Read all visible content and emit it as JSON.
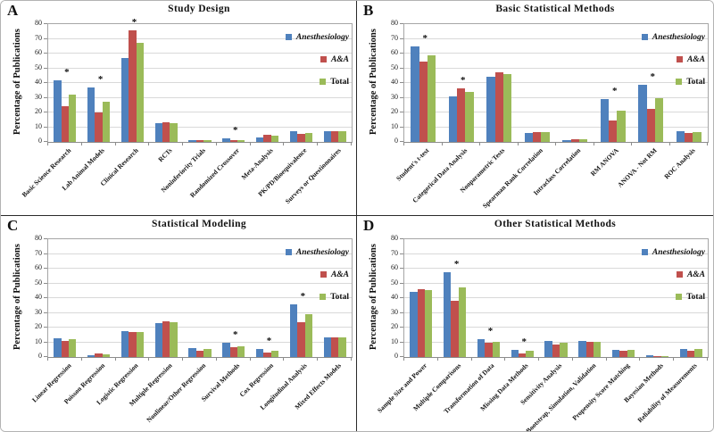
{
  "figure": {
    "border_color": "#b3b3b3",
    "panel_divider_color": "#2a2a2a",
    "background": "#ffffff"
  },
  "colors": {
    "anesthesiology": "#4F81BD",
    "aa": "#C0504D",
    "total": "#9BBB59",
    "gridline": "#d9d9d9",
    "axis": "#8c8c8c"
  },
  "sig_marker": "*",
  "legend": {
    "items": [
      {
        "label": "Anesthesiology",
        "italic": true
      },
      {
        "label": "A&A",
        "italic": true
      },
      {
        "label": "Total",
        "italic": false
      }
    ]
  },
  "chart_data": [
    {
      "panel_label": "A",
      "type": "bar",
      "title": "Study Design",
      "xlabel": "",
      "ylabel": "Percentage of Publications",
      "ylim": [
        0,
        80
      ],
      "yticks": [
        0,
        10,
        20,
        30,
        40,
        50,
        60,
        70,
        80
      ],
      "grid": true,
      "legend_position": "top-right-inside",
      "categories": [
        "Basic Science Research",
        "Lab Animal Models",
        "Clinical Research",
        "RCTs",
        "Noninferiority Trials",
        "Randomized Crossover",
        "Meta-Analysis",
        "PK/PD/Bioequivalence",
        "Surveys or Questionnaires"
      ],
      "series": [
        {
          "name": "Anesthesiology",
          "values": [
            42,
            37,
            57,
            12.5,
            1,
            2.5,
            3,
            7,
            7
          ]
        },
        {
          "name": "A&A",
          "values": [
            24.5,
            20,
            75.5,
            13.5,
            1.5,
            1,
            5,
            5.5,
            7
          ]
        },
        {
          "name": "Total",
          "values": [
            32,
            27.5,
            67,
            12.5,
            1,
            1.5,
            4,
            6,
            7
          ]
        }
      ],
      "significant": [
        true,
        true,
        true,
        false,
        false,
        true,
        false,
        false,
        false
      ]
    },
    {
      "panel_label": "B",
      "type": "bar",
      "title": "Basic Statistical Methods",
      "xlabel": "",
      "ylabel": "Percentage of Publications",
      "ylim": [
        0,
        80
      ],
      "yticks": [
        0,
        10,
        20,
        30,
        40,
        50,
        60,
        70,
        80
      ],
      "grid": true,
      "legend_position": "top-right-inside",
      "categories": [
        "Student's t-test",
        "Categorical Data Analysis",
        "Nonparametric Tests",
        "Spearman Rank Correlation",
        "Intraclass Correlation",
        "RM ANOVA",
        "ANOVA - Not RM",
        "ROC Analysis"
      ],
      "series": [
        {
          "name": "Anesthesiology",
          "values": [
            65,
            31,
            44,
            6,
            1.5,
            29,
            38.5,
            7
          ]
        },
        {
          "name": "A&A",
          "values": [
            54.5,
            36.5,
            47.5,
            6.5,
            2,
            14.5,
            22.5,
            6
          ]
        },
        {
          "name": "Total",
          "values": [
            59,
            34,
            46,
            6.5,
            2,
            21,
            30,
            6.5
          ]
        }
      ],
      "significant": [
        true,
        true,
        false,
        false,
        false,
        true,
        true,
        false
      ]
    },
    {
      "panel_label": "C",
      "type": "bar",
      "title": "Statistical Modeling",
      "xlabel": "",
      "ylabel": "Percentage of Publications",
      "ylim": [
        0,
        80
      ],
      "yticks": [
        0,
        10,
        20,
        30,
        40,
        50,
        60,
        70,
        80
      ],
      "grid": true,
      "legend_position": "top-right-inside",
      "categories": [
        "Linear Regression",
        "Poisson Regression",
        "Logistic Regression",
        "Multiple Regression",
        "Nonlinear/Other Regression",
        "Survival Methods",
        "Cox Regression",
        "Longitudinal Analysis",
        "Mixed Effects Models"
      ],
      "series": [
        {
          "name": "Anesthesiology",
          "values": [
            12.5,
            1.5,
            17.5,
            23,
            6,
            10,
            5.5,
            36,
            13.5
          ]
        },
        {
          "name": "A&A",
          "values": [
            11,
            2.5,
            17,
            24.5,
            4.5,
            6.5,
            3,
            23.5,
            13.5
          ]
        },
        {
          "name": "Total",
          "values": [
            12,
            2,
            17,
            23.5,
            5.5,
            7.5,
            4.5,
            29,
            13.5
          ]
        }
      ],
      "significant": [
        false,
        false,
        false,
        false,
        false,
        true,
        true,
        true,
        false
      ]
    },
    {
      "panel_label": "D",
      "type": "bar",
      "title": "Other Statistical Methods",
      "xlabel": "",
      "ylabel": "Percentage of Publications",
      "ylim": [
        0,
        80
      ],
      "yticks": [
        0,
        10,
        20,
        30,
        40,
        50,
        60,
        70,
        80
      ],
      "grid": true,
      "legend_position": "top-right-inside",
      "categories": [
        "Sample Size and Power",
        "Multiple Comparisons",
        "Transformation of Data",
        "Missing Data Methods",
        "Sensitivity Analysis",
        "Bootstrap, Simulation, Validation",
        "Propensity Score Matching",
        "Bayesian Methods",
        "Reliability of Measurements"
      ],
      "series": [
        {
          "name": "Anesthesiology",
          "values": [
            44,
            57.5,
            12,
            5,
            11,
            11,
            5,
            1,
            5.5
          ]
        },
        {
          "name": "A&A",
          "values": [
            46,
            38,
            9.5,
            2.5,
            8.5,
            10.5,
            4.5,
            0.5,
            4.5
          ]
        },
        {
          "name": "Total",
          "values": [
            45.5,
            47,
            10.5,
            4,
            10,
            10.5,
            5,
            0.5,
            5.5
          ]
        }
      ],
      "significant": [
        false,
        true,
        true,
        true,
        false,
        false,
        false,
        false,
        false
      ]
    }
  ]
}
